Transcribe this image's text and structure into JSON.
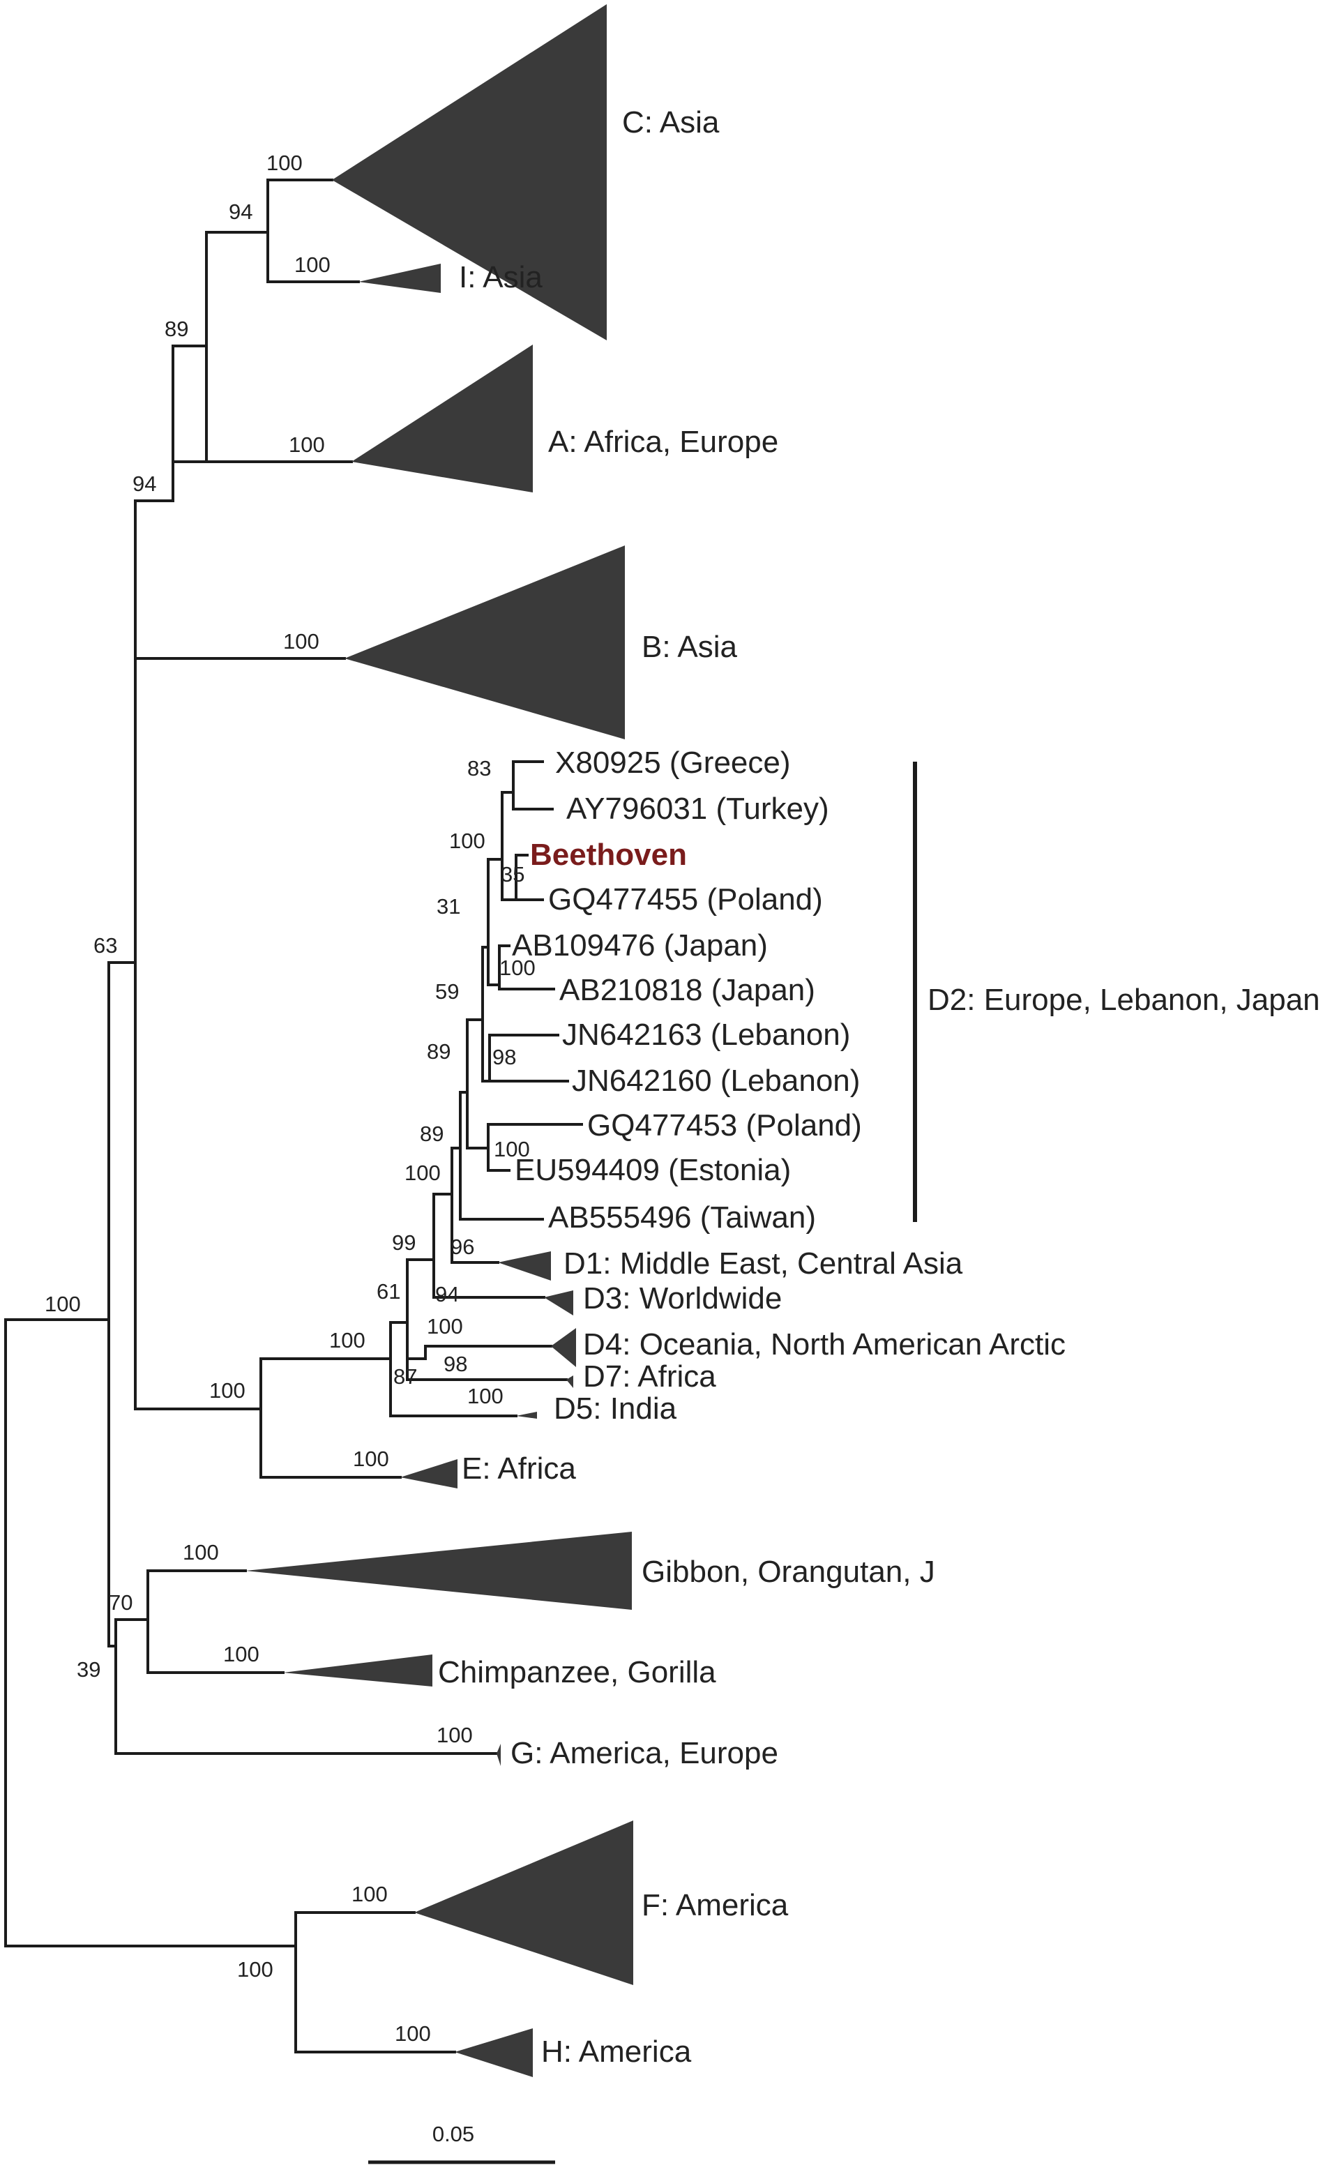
{
  "tip_labels": {
    "c_asia": "C: Asia",
    "i_asia": "I: Asia",
    "a_africa_europe": "A: Africa, Europe",
    "b_asia": "B: Asia",
    "x80925": "X80925 (Greece)",
    "ay796031": "AY796031 (Turkey)",
    "beethoven": "Beethoven",
    "gq477455": "GQ477455 (Poland)",
    "ab109476": "AB109476 (Japan)",
    "ab210818": "AB210818 (Japan)",
    "jn642163": "JN642163 (Lebanon)",
    "jn642160": "JN642160 (Lebanon)",
    "gq477453": "GQ477453 (Poland)",
    "eu594409": "EU594409 (Estonia)",
    "ab555496": "AB555496 (Taiwan)",
    "d1": "D1: Middle East, Central Asia",
    "d3": "D3: Worldwide",
    "d4": "D4: Oceania, North American Arctic",
    "d7": "D7: Africa",
    "d5": "D5: India",
    "e_africa": "E: Africa",
    "gibbon": "Gibbon, Orangutan, J",
    "chimp": "Chimpanzee, Gorilla",
    "g_america_europe": "G: America, Europe",
    "f_america": "F: America",
    "h_america": "H: America"
  },
  "group_label": "D2: Europe, Lebanon, Japan",
  "support": {
    "root": "100",
    "n63": "63",
    "n94": "94",
    "n89": "89",
    "n94b": "94",
    "c100": "100",
    "i100": "100",
    "a100": "100",
    "b100": "100",
    "de100": "100",
    "d100": "100",
    "e100": "100",
    "d61": "61",
    "d87": "87",
    "d99": "99",
    "d94": "94",
    "d4_100": "100",
    "d98": "98",
    "d5_100": "100",
    "d2_100": "100",
    "d1_96": "96",
    "d2_89a": "89",
    "d2_89b": "89",
    "d2_59": "59",
    "d2_31": "31",
    "d2_100a": "100",
    "d2_83": "83",
    "d2_35": "35",
    "jap100": "100",
    "leb98": "98",
    "pe100": "100",
    "n39": "39",
    "n70": "70",
    "gib100": "100",
    "chimp100": "100",
    "g100": "100",
    "fh100": "100",
    "f100": "100",
    "h100": "100"
  },
  "scale_bar": "0.05",
  "colors": {
    "branch": "#1b1b1b",
    "collapsed_clade": "#3a3a3a",
    "highlight": "#7a1c1c",
    "text": "#222222"
  }
}
